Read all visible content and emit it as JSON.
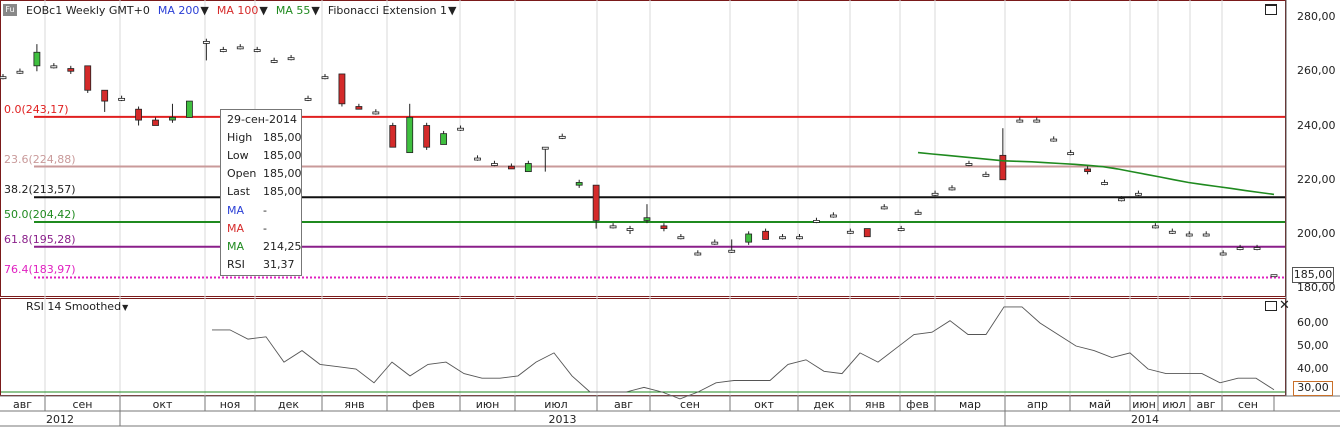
{
  "header": {
    "symbol_badge": "Fu",
    "symbol": "EOBc1 Weekly GMT+0",
    "ma200": "MA 200",
    "ma100": "MA 100",
    "ma55": "MA 55",
    "fib": "Fibonacci Extension 1",
    "colors": {
      "ma200": "#2a3fd6",
      "ma100": "#d62a2a",
      "ma55": "#1f8a1f"
    }
  },
  "price_axis": {
    "ticks": [
      "280,00",
      "260,00",
      "240,00",
      "220,00",
      "200,00",
      "180,00"
    ],
    "last_price": "185,00"
  },
  "fibonacci": [
    {
      "label": "0.0(243,17)",
      "price": 243.17,
      "color": "#e02020"
    },
    {
      "label": "23.6(224,88)",
      "price": 224.88,
      "color": "#c99a9a"
    },
    {
      "label": "38.2(213,57)",
      "price": 213.57,
      "color": "#111111"
    },
    {
      "label": "50.0(204,42)",
      "price": 204.42,
      "color": "#1f8a1f"
    },
    {
      "label": "61.8(195,28)",
      "price": 195.28,
      "color": "#8a1f8a"
    },
    {
      "label": "76.4(183,97)",
      "price": 183.97,
      "color": "#e020c0"
    }
  ],
  "tooltip": {
    "date": "29-сен-2014",
    "rows": [
      {
        "k": "High",
        "v": "185,00",
        "color": "#222"
      },
      {
        "k": "Low",
        "v": "185,00",
        "color": "#222"
      },
      {
        "k": "Open",
        "v": "185,00",
        "color": "#222"
      },
      {
        "k": "Last",
        "v": "185,00",
        "color": "#222"
      },
      {
        "k": "MA",
        "v": "-",
        "color": "#2a3fd6"
      },
      {
        "k": "MA",
        "v": "-",
        "color": "#d62a2a"
      },
      {
        "k": "MA",
        "v": "214,25",
        "color": "#1f8a1f"
      },
      {
        "k": "RSI",
        "v": "31,37",
        "color": "#222"
      }
    ]
  },
  "rsi": {
    "title": "RSI 14 Smoothed",
    "ticks": [
      "60,00",
      "50,00",
      "40,00"
    ],
    "level": "30,00"
  },
  "time_axis": {
    "months": [
      "авг",
      "сен",
      "окт",
      "ноя",
      "дек",
      "янв",
      "фев",
      "июн",
      "июл",
      "авг",
      "сен",
      "окт",
      "дек",
      "янв",
      "фев",
      "мар",
      "апр",
      "май",
      "июн",
      "июл",
      "авг",
      "сен"
    ],
    "years": [
      "2012",
      "2013",
      "2014"
    ]
  },
  "chart_data": {
    "type": "candlestick",
    "price_ylim": [
      178,
      286
    ],
    "rsi_ylim": [
      25,
      70
    ],
    "candles": [
      {
        "o": 258,
        "h": 259,
        "l": 257,
        "c": 258
      },
      {
        "o": 260,
        "h": 261,
        "l": 259,
        "c": 260
      },
      {
        "o": 262,
        "h": 270,
        "l": 260,
        "c": 267
      },
      {
        "o": 262,
        "h": 263,
        "l": 261,
        "c": 262
      },
      {
        "o": 261,
        "h": 262,
        "l": 259,
        "c": 260
      },
      {
        "o": 262,
        "h": 262,
        "l": 252,
        "c": 253
      },
      {
        "o": 253,
        "h": 253,
        "l": 245,
        "c": 249
      },
      {
        "o": 250,
        "h": 251,
        "l": 249,
        "c": 250
      },
      {
        "o": 246,
        "h": 247,
        "l": 240,
        "c": 242
      },
      {
        "o": 242,
        "h": 243,
        "l": 240,
        "c": 240
      },
      {
        "o": 242,
        "h": 248,
        "l": 241,
        "c": 243
      },
      {
        "o": 243,
        "h": 249,
        "l": 243,
        "c": 249
      },
      {
        "o": 271,
        "h": 272,
        "l": 264,
        "c": 271
      },
      {
        "o": 268,
        "h": 269,
        "l": 267,
        "c": 268
      },
      {
        "o": 269,
        "h": 270,
        "l": 268,
        "c": 269
      },
      {
        "o": 268,
        "h": 269,
        "l": 267,
        "c": 268
      },
      {
        "o": 264,
        "h": 265,
        "l": 263,
        "c": 264
      },
      {
        "o": 265,
        "h": 266,
        "l": 264,
        "c": 265
      },
      {
        "o": 250,
        "h": 251,
        "l": 249,
        "c": 250
      },
      {
        "o": 258,
        "h": 259,
        "l": 257,
        "c": 258
      },
      {
        "o": 259,
        "h": 259,
        "l": 247,
        "c": 248
      },
      {
        "o": 247,
        "h": 248,
        "l": 246,
        "c": 246
      },
      {
        "o": 245,
        "h": 246,
        "l": 244,
        "c": 245
      },
      {
        "o": 240,
        "h": 241,
        "l": 232,
        "c": 232
      },
      {
        "o": 230,
        "h": 248,
        "l": 230,
        "c": 243
      },
      {
        "o": 240,
        "h": 241,
        "l": 231,
        "c": 232
      },
      {
        "o": 233,
        "h": 238,
        "l": 233,
        "c": 237
      },
      {
        "o": 239,
        "h": 240,
        "l": 238,
        "c": 239
      },
      {
        "o": 228,
        "h": 229,
        "l": 227,
        "c": 228
      },
      {
        "o": 226,
        "h": 227,
        "l": 225,
        "c": 226
      },
      {
        "o": 225,
        "h": 226,
        "l": 224,
        "c": 224
      },
      {
        "o": 223,
        "h": 227,
        "l": 223,
        "c": 226
      },
      {
        "o": 232,
        "h": 232,
        "l": 223,
        "c": 232
      },
      {
        "o": 236,
        "h": 237,
        "l": 235,
        "c": 236
      },
      {
        "o": 218,
        "h": 220,
        "l": 217,
        "c": 219
      },
      {
        "o": 218,
        "h": 218,
        "l": 202,
        "c": 205
      },
      {
        "o": 203,
        "h": 204,
        "l": 202,
        "c": 203
      },
      {
        "o": 202,
        "h": 203,
        "l": 200,
        "c": 202
      },
      {
        "o": 205,
        "h": 211,
        "l": 204,
        "c": 206
      },
      {
        "o": 203,
        "h": 204,
        "l": 201,
        "c": 202
      },
      {
        "o": 199,
        "h": 200,
        "l": 198,
        "c": 199
      },
      {
        "o": 193,
        "h": 194,
        "l": 192,
        "c": 193
      },
      {
        "o": 197,
        "h": 198,
        "l": 196,
        "c": 197
      },
      {
        "o": 194,
        "h": 198,
        "l": 193,
        "c": 194
      },
      {
        "o": 197,
        "h": 201,
        "l": 196,
        "c": 200
      },
      {
        "o": 201,
        "h": 202,
        "l": 198,
        "c": 198
      },
      {
        "o": 199,
        "h": 200,
        "l": 198,
        "c": 199
      },
      {
        "o": 199,
        "h": 200,
        "l": 198,
        "c": 199
      },
      {
        "o": 205,
        "h": 206,
        "l": 204,
        "c": 205
      },
      {
        "o": 207,
        "h": 208,
        "l": 206,
        "c": 207
      },
      {
        "o": 201,
        "h": 202,
        "l": 200,
        "c": 201
      },
      {
        "o": 202,
        "h": 202,
        "l": 199,
        "c": 199
      },
      {
        "o": 210,
        "h": 211,
        "l": 209,
        "c": 210
      },
      {
        "o": 202,
        "h": 203,
        "l": 201,
        "c": 202
      },
      {
        "o": 208,
        "h": 209,
        "l": 207,
        "c": 208
      },
      {
        "o": 215,
        "h": 216,
        "l": 214,
        "c": 215
      },
      {
        "o": 217,
        "h": 218,
        "l": 216,
        "c": 217
      },
      {
        "o": 226,
        "h": 227,
        "l": 225,
        "c": 226
      },
      {
        "o": 222,
        "h": 223,
        "l": 221,
        "c": 222
      },
      {
        "o": 229,
        "h": 239,
        "l": 220,
        "c": 220
      },
      {
        "o": 242,
        "h": 243,
        "l": 241,
        "c": 242
      },
      {
        "o": 242,
        "h": 243,
        "l": 241,
        "c": 242
      },
      {
        "o": 235,
        "h": 236,
        "l": 234,
        "c": 235
      },
      {
        "o": 230,
        "h": 231,
        "l": 229,
        "c": 230
      },
      {
        "o": 224,
        "h": 225,
        "l": 222,
        "c": 223
      },
      {
        "o": 219,
        "h": 220,
        "l": 218,
        "c": 219
      },
      {
        "o": 213,
        "h": 214,
        "l": 212,
        "c": 213
      },
      {
        "o": 215,
        "h": 216,
        "l": 214,
        "c": 215
      },
      {
        "o": 203,
        "h": 204,
        "l": 202,
        "c": 203
      },
      {
        "o": 201,
        "h": 202,
        "l": 200,
        "c": 201
      },
      {
        "o": 200,
        "h": 201,
        "l": 199,
        "c": 200
      },
      {
        "o": 200,
        "h": 201,
        "l": 199,
        "c": 200
      },
      {
        "o": 193,
        "h": 194,
        "l": 192,
        "c": 193
      },
      {
        "o": 195,
        "h": 196,
        "l": 194,
        "c": 195
      },
      {
        "o": 195,
        "h": 196,
        "l": 194,
        "c": 195
      },
      {
        "o": 185,
        "h": 185,
        "l": 185,
        "c": 185
      }
    ],
    "ma55": [
      230,
      229.5,
      229,
      228.5,
      228,
      227.5,
      227,
      226.8,
      226.6,
      226.3,
      226,
      225.7,
      225.3,
      224.8,
      224,
      223,
      222,
      221,
      220,
      219,
      218.2,
      217.5,
      216.8,
      216,
      215.3,
      214.6
    ],
    "rsi": [
      57,
      57,
      53,
      54,
      43,
      48,
      42,
      41,
      40,
      34,
      43,
      37,
      42,
      43,
      38,
      36,
      36,
      37,
      43,
      47,
      37,
      30,
      30,
      30,
      32,
      30,
      27,
      30,
      34,
      35,
      35,
      35,
      42,
      44,
      39,
      38,
      47,
      43,
      49,
      55,
      56,
      61,
      55,
      55,
      67,
      67,
      60,
      55,
      50,
      48,
      45,
      47,
      40,
      38,
      38,
      38,
      34,
      36,
      36,
      31
    ]
  }
}
